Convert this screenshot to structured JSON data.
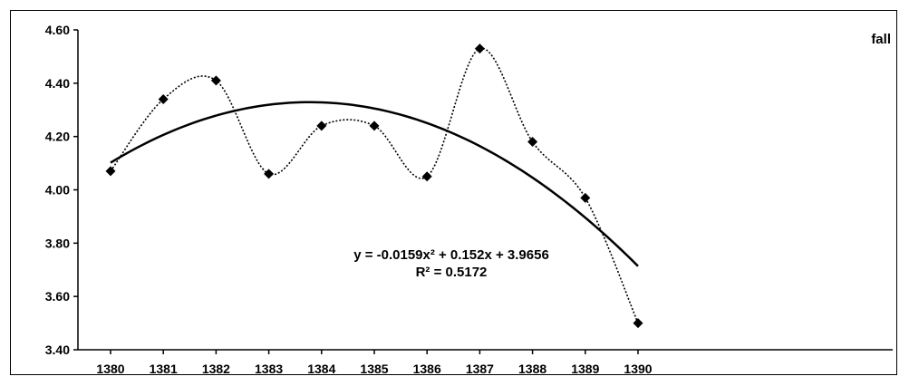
{
  "chart_data": {
    "type": "line",
    "title": "",
    "xlabel": "",
    "ylabel": "",
    "categories": [
      "1380",
      "1381",
      "1382",
      "1383",
      "1384",
      "1385",
      "1386",
      "1387",
      "1388",
      "1389",
      "1390"
    ],
    "series": [
      {
        "name": "fall",
        "values": [
          4.07,
          4.34,
          4.41,
          4.06,
          4.24,
          4.24,
          4.05,
          4.53,
          4.18,
          3.97,
          3.5
        ],
        "marker": "diamond",
        "line_style": "dotted-smooth",
        "color": "#000000"
      }
    ],
    "trendline": {
      "type": "polynomial",
      "order": 2,
      "coefficients": {
        "a": -0.0159,
        "b": 0.152,
        "c": 3.9656
      },
      "equation": "y = -0.0159x² + 0.152x + 3.9656",
      "r_squared": "R² = 0.5172",
      "color": "#000000"
    },
    "ylim": [
      3.4,
      4.6
    ],
    "yticks": [
      "3.40",
      "3.60",
      "3.80",
      "4.00",
      "4.20",
      "4.40",
      "4.60"
    ],
    "grid": false,
    "legend": "top-right"
  }
}
